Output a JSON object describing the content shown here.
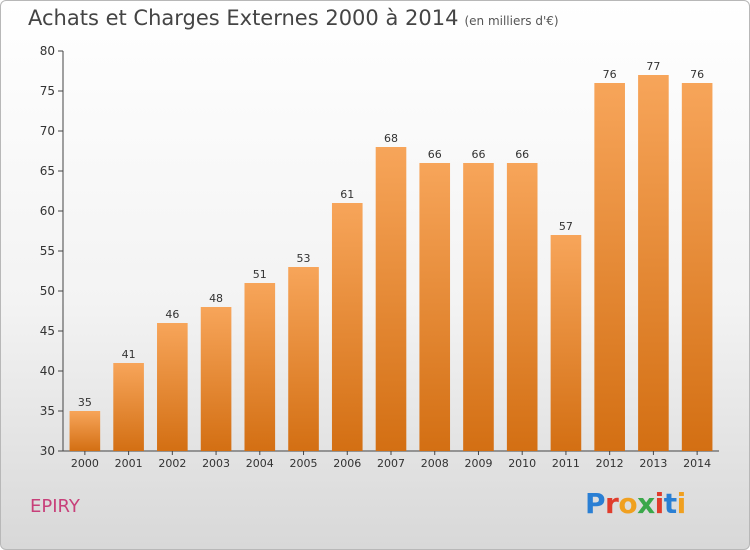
{
  "header": {
    "title": "Achats et Charges Externes 2000 à 2014",
    "unit": "(en milliers d'€)"
  },
  "footer": {
    "commune": "EPIRY",
    "logo": "Proxiti"
  },
  "colors": {
    "bar_top": "#f7a55a",
    "bar_bottom": "#d36f13",
    "commune": "#c8407a",
    "logo_letters": [
      "#2a7fd4",
      "#e03c2c",
      "#f0a020",
      "#3aa84a",
      "#e03c2c",
      "#2a7fd4",
      "#f0a020"
    ]
  },
  "chart_data": {
    "type": "bar",
    "title": "Achats et Charges Externes 2000 à 2014",
    "subtitle": "(en milliers d'€)",
    "categories": [
      "2000",
      "2001",
      "2002",
      "2003",
      "2004",
      "2005",
      "2006",
      "2007",
      "2008",
      "2009",
      "2010",
      "2011",
      "2012",
      "2013",
      "2014"
    ],
    "values": [
      35,
      41,
      46,
      48,
      51,
      53,
      61,
      68,
      66,
      66,
      66,
      57,
      76,
      77,
      76
    ],
    "ylim": [
      30,
      80
    ],
    "yticks": [
      30,
      35,
      40,
      45,
      50,
      55,
      60,
      65,
      70,
      75,
      80
    ],
    "grid": false,
    "data_labels": true
  }
}
